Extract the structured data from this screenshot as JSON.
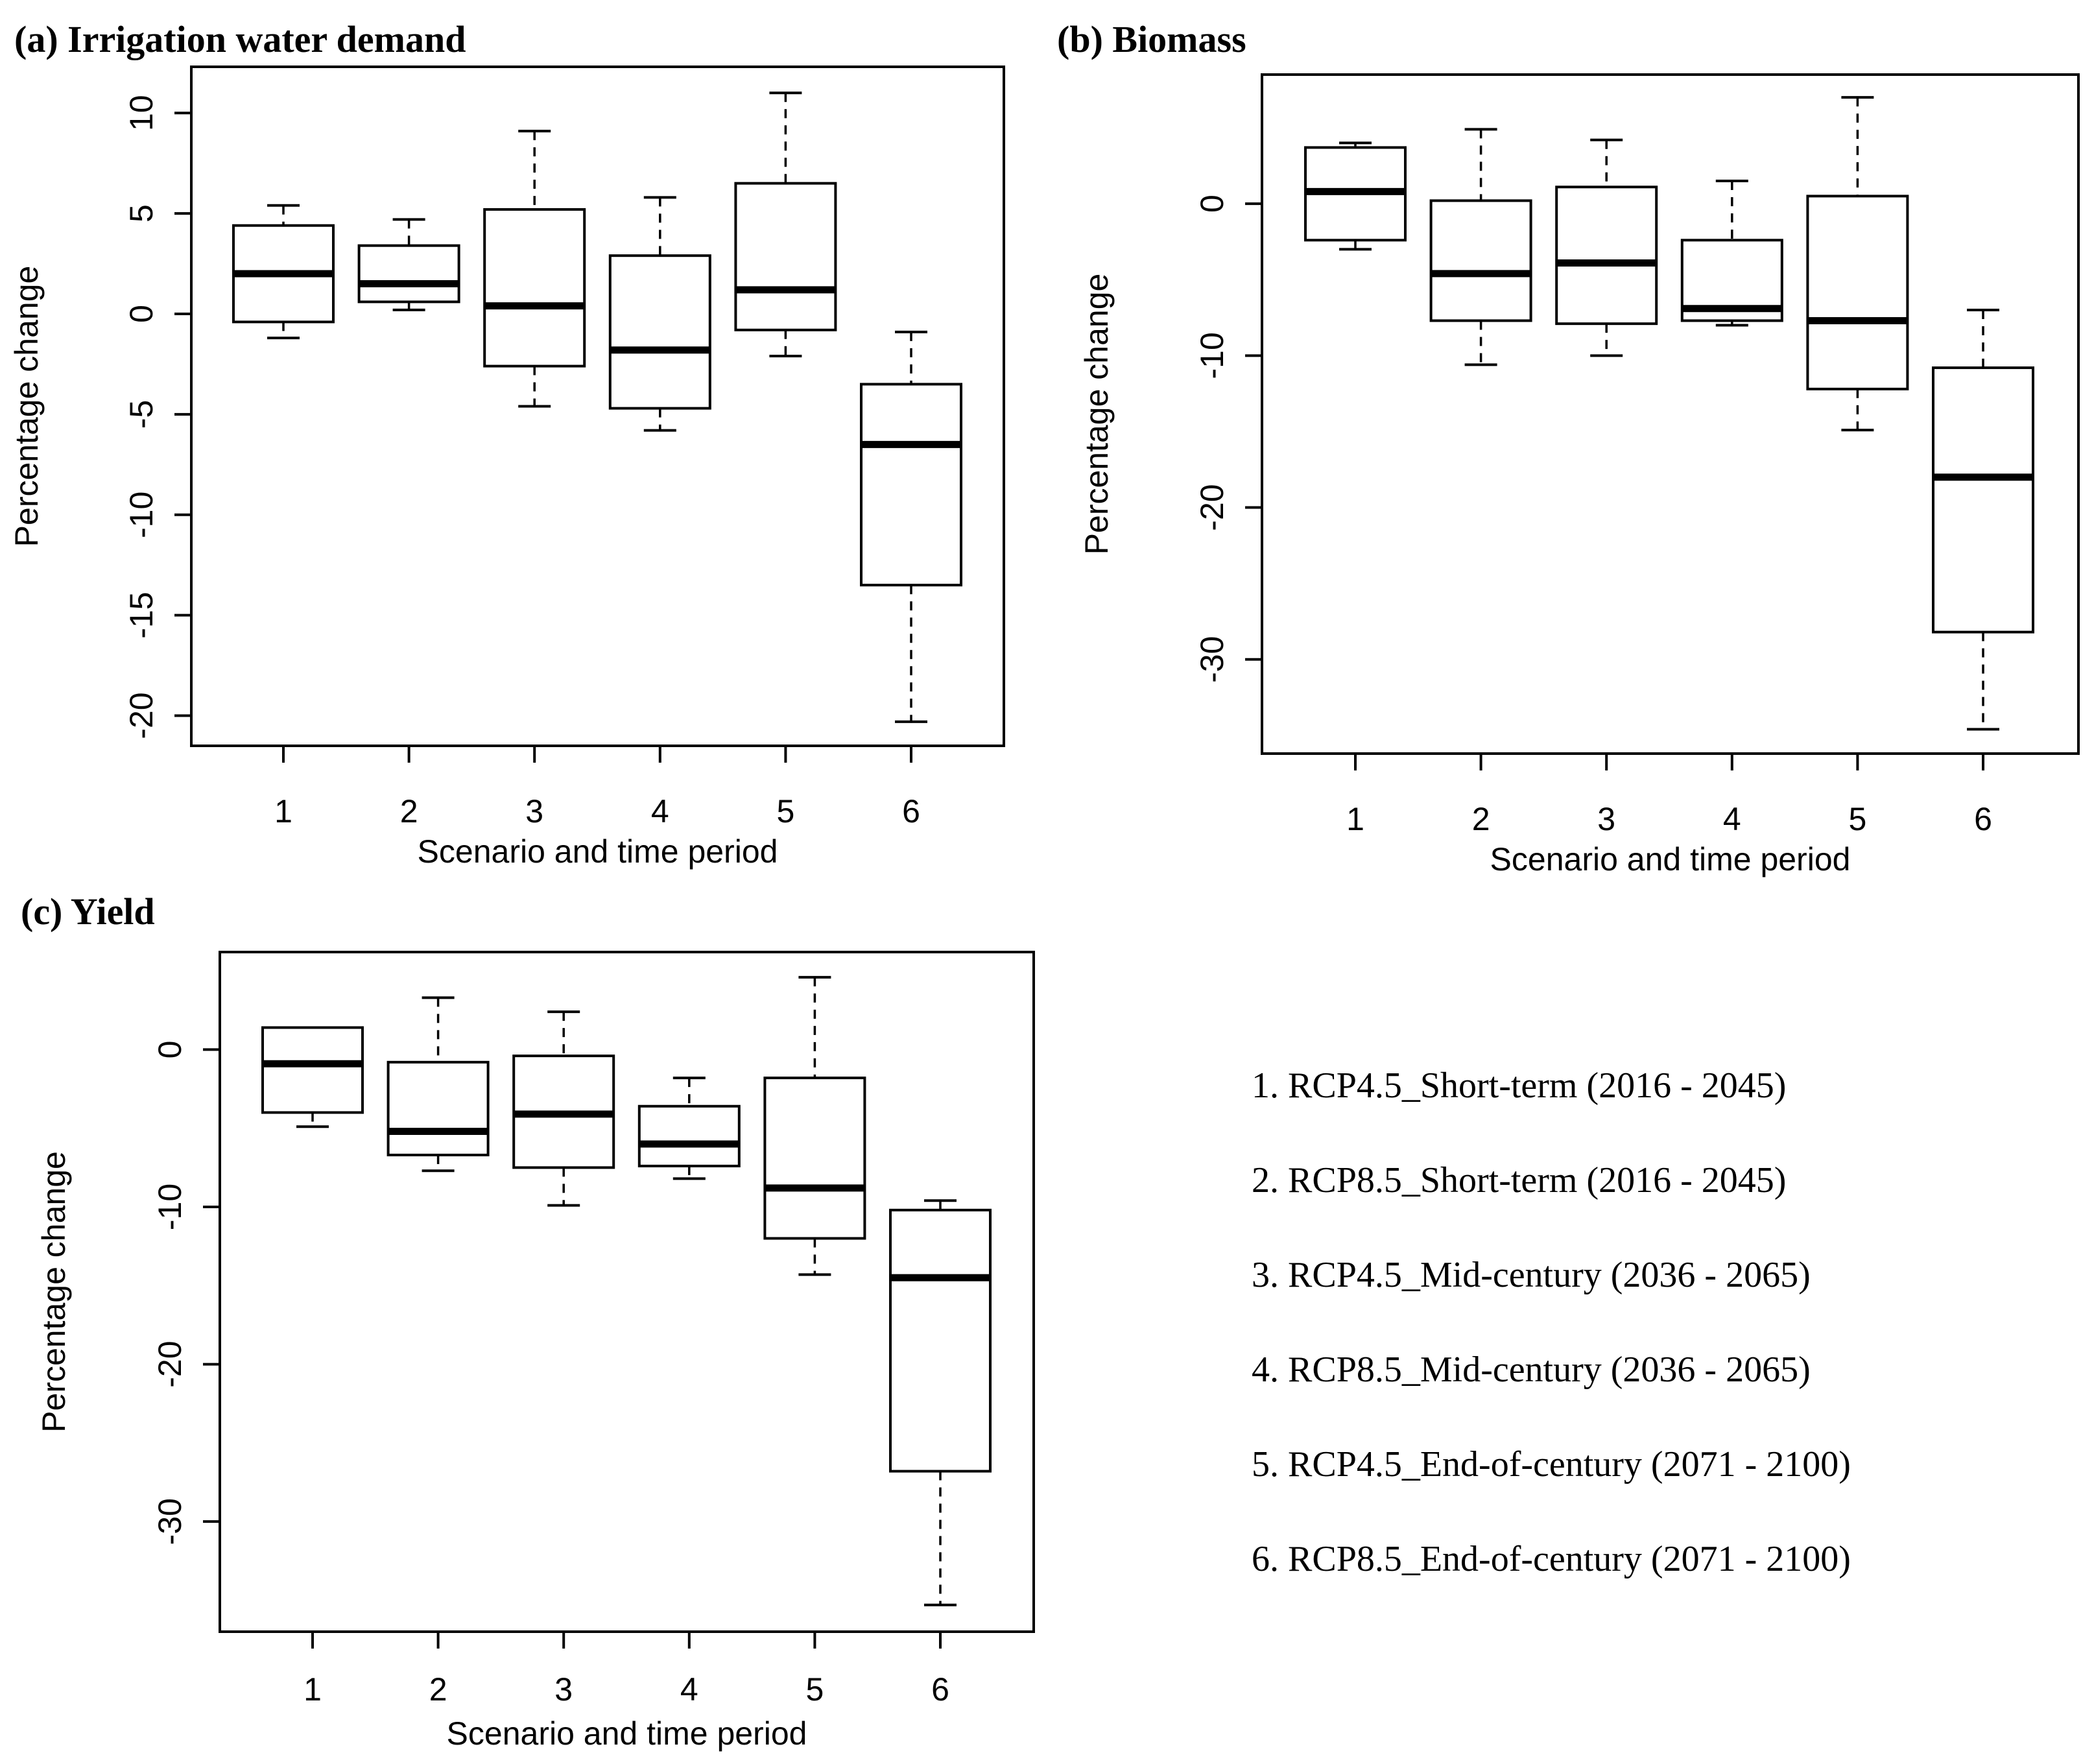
{
  "chart_data": [
    {
      "id": "a",
      "type": "boxplot",
      "title": "(a) Irrigation water demand",
      "xlabel": "Scenario and time period",
      "ylabel": "Percentage change",
      "categories": [
        "1",
        "2",
        "3",
        "4",
        "5",
        "6"
      ],
      "ylim": [
        -21.5,
        12.3
      ],
      "yticks": [
        10,
        5,
        0,
        -5,
        -10,
        -15,
        -20
      ],
      "boxes": [
        {
          "whisker_low": -1.2,
          "q1": -0.4,
          "median": 2.0,
          "q3": 4.4,
          "whisker_high": 5.4
        },
        {
          "whisker_low": 0.2,
          "q1": 0.6,
          "median": 1.5,
          "q3": 3.4,
          "whisker_high": 4.7
        },
        {
          "whisker_low": -4.6,
          "q1": -2.6,
          "median": 0.4,
          "q3": 5.2,
          "whisker_high": 9.1
        },
        {
          "whisker_low": -5.8,
          "q1": -4.7,
          "median": -1.8,
          "q3": 2.9,
          "whisker_high": 5.8
        },
        {
          "whisker_low": -2.1,
          "q1": -0.8,
          "median": 1.2,
          "q3": 6.5,
          "whisker_high": 11.0
        },
        {
          "whisker_low": -20.3,
          "q1": -13.5,
          "median": -6.5,
          "q3": -3.5,
          "whisker_high": -0.9
        }
      ]
    },
    {
      "id": "b",
      "type": "boxplot",
      "title": "(b) Biomass",
      "xlabel": "Scenario and time period",
      "ylabel": "Percentage change",
      "categories": [
        "1",
        "2",
        "3",
        "4",
        "5",
        "6"
      ],
      "ylim": [
        -36.2,
        8.5
      ],
      "yticks": [
        0,
        -10,
        -20,
        -30
      ],
      "boxes": [
        {
          "whisker_low": -3.0,
          "q1": -2.4,
          "median": 0.8,
          "q3": 3.7,
          "whisker_high": 4.0
        },
        {
          "whisker_low": -10.6,
          "q1": -7.7,
          "median": -4.6,
          "q3": 0.2,
          "whisker_high": 4.9
        },
        {
          "whisker_low": -10.0,
          "q1": -7.9,
          "median": -3.9,
          "q3": 1.1,
          "whisker_high": 4.2
        },
        {
          "whisker_low": -8.0,
          "q1": -7.7,
          "median": -6.9,
          "q3": -2.4,
          "whisker_high": 1.5
        },
        {
          "whisker_low": -14.9,
          "q1": -12.2,
          "median": -7.7,
          "q3": 0.5,
          "whisker_high": 7.0
        },
        {
          "whisker_low": -34.6,
          "q1": -28.2,
          "median": -18.0,
          "q3": -10.8,
          "whisker_high": -7.0
        }
      ]
    },
    {
      "id": "c",
      "type": "boxplot",
      "title": "(c) Yield",
      "xlabel": "Scenario and time period",
      "ylabel": "Percentage change",
      "categories": [
        "1",
        "2",
        "3",
        "4",
        "5",
        "6"
      ],
      "ylim": [
        -37.0,
        6.2
      ],
      "yticks": [
        0,
        -10,
        -20,
        -30
      ],
      "boxes": [
        {
          "whisker_low": -4.9,
          "q1": -4.0,
          "median": -0.9,
          "q3": 1.4,
          "whisker_high": 1.4
        },
        {
          "whisker_low": -7.7,
          "q1": -6.7,
          "median": -5.2,
          "q3": -0.8,
          "whisker_high": 3.3
        },
        {
          "whisker_low": -9.9,
          "q1": -7.5,
          "median": -4.1,
          "q3": -0.4,
          "whisker_high": 2.4
        },
        {
          "whisker_low": -8.2,
          "q1": -7.4,
          "median": -6.0,
          "q3": -3.6,
          "whisker_high": -1.8
        },
        {
          "whisker_low": -14.3,
          "q1": -12.0,
          "median": -8.8,
          "q3": -1.8,
          "whisker_high": 4.6
        },
        {
          "whisker_low": -35.3,
          "q1": -26.8,
          "median": -14.5,
          "q3": -10.2,
          "whisker_high": -9.6
        }
      ]
    }
  ],
  "legend": [
    "1. RCP4.5_Short-term (2016 - 2045)",
    "2. RCP8.5_Short-term (2016 - 2045)",
    "3. RCP4.5_Mid-century (2036 - 2065)",
    "4. RCP8.5_Mid-century (2036 - 2065)",
    "5. RCP4.5_End-of-century (2071 - 2100)",
    "6. RCP8.5_End-of-century (2071 - 2100)"
  ]
}
